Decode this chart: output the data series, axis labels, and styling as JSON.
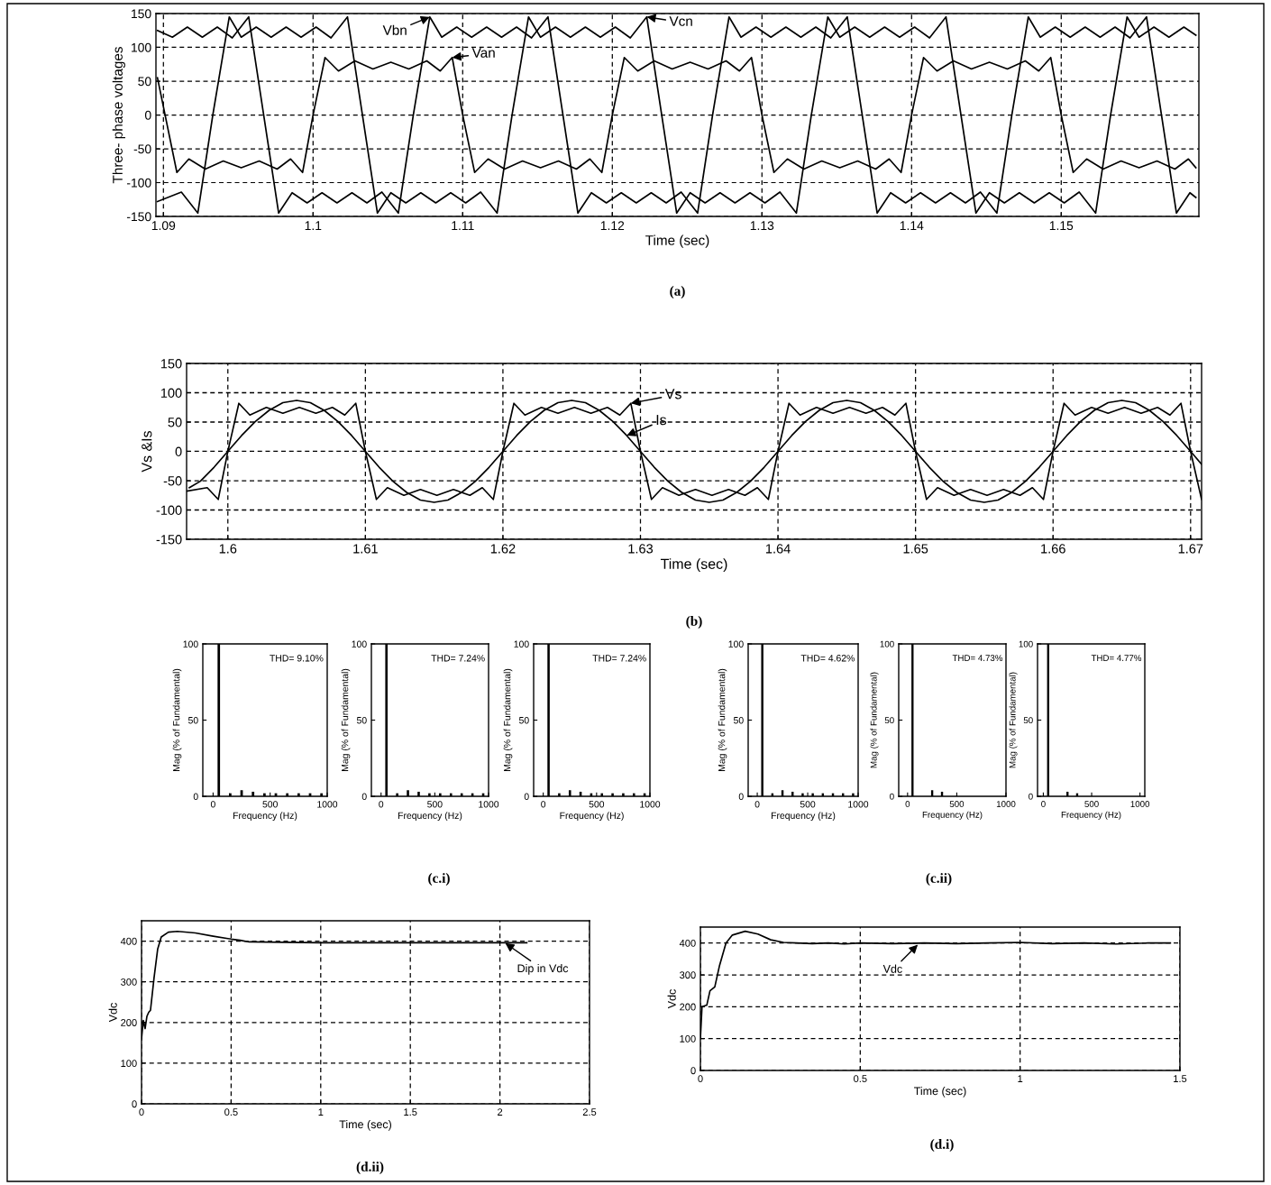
{
  "chart_data": [
    {
      "type": "line",
      "xlabel": "Time (sec)",
      "ylabel": "Three- phase voltages",
      "xlim": [
        1.0895,
        1.1592
      ],
      "xticks": [
        1.09,
        1.1,
        1.11,
        1.12,
        1.13,
        1.14,
        1.15
      ],
      "ylim": [
        -150,
        150
      ],
      "yticks": [
        -150,
        -100,
        -50,
        0,
        50,
        100,
        150
      ],
      "grid": true,
      "legend": false,
      "series": [
        {
          "color": "#000000",
          "x": [
            1.0896,
            1.0912,
            1.0923,
            1.0933,
            1.0944,
            1.0952,
            1.0962,
            1.0972,
            1.0982,
            1.0992,
            1.1002,
            1.1012,
            1.1023,
            1.1033,
            1.1043,
            1.1052,
            1.1062,
            1.1072,
            1.1082,
            1.1092,
            1.1102,
            1.1112,
            1.1123,
            1.1133,
            1.1144,
            1.1152,
            1.1162,
            1.1172,
            1.1182,
            1.1192,
            1.1202,
            1.1212,
            1.1223,
            1.1233,
            1.1243,
            1.1252,
            1.1262,
            1.1272,
            1.1282,
            1.1292,
            1.1302,
            1.1312,
            1.1323,
            1.1333,
            1.1344,
            1.1352,
            1.1362,
            1.1372,
            1.1382,
            1.1392,
            1.1402,
            1.1412,
            1.1423,
            1.1433,
            1.1443,
            1.1452,
            1.1462,
            1.1472,
            1.1482,
            1.1492,
            1.1502,
            1.1512,
            1.1523,
            1.1533,
            1.1544,
            1.1552,
            1.1562,
            1.1572,
            1.1582,
            1.159
          ],
          "values": [
            -128,
            -114,
            -145,
            0,
            145,
            115,
            130,
            115,
            130,
            115,
            130,
            114,
            145,
            0,
            -145,
            -115,
            -130,
            -115,
            -130,
            -115,
            -130,
            -114,
            -145,
            0,
            145,
            115,
            130,
            115,
            130,
            115,
            130,
            114,
            145,
            0,
            -145,
            -115,
            -130,
            -115,
            -130,
            -115,
            -130,
            -114,
            -145,
            0,
            145,
            115,
            130,
            115,
            130,
            115,
            130,
            114,
            145,
            0,
            -145,
            -115,
            -130,
            -115,
            -130,
            -115,
            -130,
            -114,
            -145,
            0,
            145,
            115,
            130,
            115,
            130,
            118
          ]
        },
        {
          "color": "#000000",
          "x": [
            1.0896,
            1.0906,
            1.0916,
            1.0926,
            1.0936,
            1.0946,
            1.0957,
            1.0967,
            1.0977,
            1.0986,
            1.0996,
            1.1006,
            1.1016,
            1.1026,
            1.1036,
            1.1046,
            1.1057,
            1.1067,
            1.1078,
            1.1086,
            1.1096,
            1.1106,
            1.1116,
            1.1126,
            1.1136,
            1.1146,
            1.1157,
            1.1167,
            1.1177,
            1.1186,
            1.1196,
            1.1206,
            1.1216,
            1.1226,
            1.1236,
            1.1246,
            1.1257,
            1.1267,
            1.1278,
            1.1286,
            1.1296,
            1.1306,
            1.1316,
            1.1326,
            1.1336,
            1.1346,
            1.1357,
            1.1367,
            1.1377,
            1.1386,
            1.1396,
            1.1406,
            1.1416,
            1.1426,
            1.1436,
            1.1446,
            1.1457,
            1.1467,
            1.1478,
            1.1486,
            1.1496,
            1.1506,
            1.1516,
            1.1526,
            1.1536,
            1.1546,
            1.1557,
            1.1567,
            1.1577,
            1.1586,
            1.159
          ],
          "values": [
            125,
            115,
            130,
            115,
            130,
            114,
            145,
            0,
            -145,
            -115,
            -130,
            -115,
            -130,
            -115,
            -130,
            -114,
            -145,
            0,
            145,
            115,
            130,
            115,
            130,
            115,
            130,
            114,
            145,
            0,
            -145,
            -115,
            -130,
            -115,
            -130,
            -115,
            -130,
            -114,
            -145,
            0,
            145,
            115,
            130,
            115,
            130,
            115,
            130,
            114,
            145,
            0,
            -145,
            -115,
            -130,
            -115,
            -130,
            -115,
            -130,
            -114,
            -145,
            0,
            145,
            115,
            130,
            115,
            130,
            115,
            130,
            114,
            145,
            0,
            -145,
            -115,
            -122
          ]
        },
        {
          "color": "#000000",
          "x": [
            1.0896,
            1.0909,
            1.0917,
            1.0928,
            1.094,
            1.0952,
            1.0964,
            1.0976,
            1.0985,
            1.0993,
            1.1,
            1.1008,
            1.1017,
            1.1028,
            1.104,
            1.1052,
            1.1064,
            1.1076,
            1.1085,
            1.1093,
            1.11,
            1.1108,
            1.1117,
            1.1128,
            1.114,
            1.1152,
            1.1164,
            1.1176,
            1.1185,
            1.1193,
            1.12,
            1.1208,
            1.1217,
            1.1228,
            1.124,
            1.1252,
            1.1264,
            1.1276,
            1.1285,
            1.1293,
            1.13,
            1.1308,
            1.1317,
            1.1328,
            1.134,
            1.1352,
            1.1364,
            1.1376,
            1.1385,
            1.1393,
            1.14,
            1.1408,
            1.1417,
            1.1428,
            1.144,
            1.1452,
            1.1464,
            1.1476,
            1.1485,
            1.1493,
            1.15,
            1.1508,
            1.1517,
            1.1528,
            1.154,
            1.1552,
            1.1564,
            1.1576,
            1.1585,
            1.159
          ],
          "values": [
            55,
            -85,
            -65,
            -80,
            -68,
            -78,
            -68,
            -80,
            -65,
            -85,
            0,
            85,
            65,
            80,
            68,
            78,
            68,
            80,
            65,
            85,
            0,
            -85,
            -65,
            -80,
            -68,
            -78,
            -68,
            -80,
            -65,
            -85,
            0,
            85,
            65,
            80,
            68,
            78,
            68,
            80,
            65,
            85,
            0,
            -85,
            -65,
            -80,
            -68,
            -78,
            -68,
            -80,
            -65,
            -85,
            0,
            85,
            65,
            80,
            68,
            78,
            68,
            80,
            65,
            85,
            0,
            -85,
            -65,
            -80,
            -68,
            -78,
            -68,
            -80,
            -65,
            -78
          ]
        }
      ],
      "annotations": [
        {
          "text": "Vbn",
          "x": 1.1078,
          "y": 145
        },
        {
          "text": "Van",
          "x": 1.1093,
          "y": 85
        },
        {
          "text": "Vcn",
          "x": 1.1223,
          "y": 145
        },
        "(a)"
      ]
    },
    {
      "type": "line",
      "xlabel": "Time (sec)",
      "ylabel": "Vs &Is",
      "xlim": [
        1.597,
        1.6708
      ],
      "xticks": [
        1.6,
        1.61,
        1.62,
        1.63,
        1.64,
        1.65,
        1.66,
        1.67
      ],
      "ylim": [
        -150,
        150
      ],
      "yticks": [
        -150,
        -100,
        -50,
        0,
        50,
        100,
        150
      ],
      "grid": true,
      "legend": false,
      "series": [
        {
          "color": "#000000",
          "x": [
            1.597,
            1.5985,
            1.5993,
            1.6,
            1.6008,
            1.6016,
            1.6028,
            1.604,
            1.6052,
            1.6064,
            1.6076,
            1.6085,
            1.6093,
            1.61,
            1.6108,
            1.6116,
            1.6128,
            1.614,
            1.6152,
            1.6164,
            1.6176,
            1.6185,
            1.6193,
            1.62,
            1.6208,
            1.6216,
            1.6228,
            1.624,
            1.6252,
            1.6264,
            1.6276,
            1.6285,
            1.6293,
            1.63,
            1.6308,
            1.6316,
            1.6328,
            1.634,
            1.6352,
            1.6364,
            1.6376,
            1.6385,
            1.6393,
            1.64,
            1.6408,
            1.6416,
            1.6428,
            1.644,
            1.6452,
            1.6464,
            1.6476,
            1.6485,
            1.6493,
            1.65,
            1.6508,
            1.6516,
            1.6528,
            1.654,
            1.6552,
            1.6564,
            1.6576,
            1.6585,
            1.6593,
            1.66,
            1.6608,
            1.6616,
            1.6628,
            1.664,
            1.6652,
            1.6664,
            1.6676,
            1.6685,
            1.6693,
            1.67,
            1.6708
          ],
          "values": [
            -68,
            -62,
            -82,
            0,
            82,
            62,
            75,
            65,
            75,
            65,
            75,
            62,
            82,
            0,
            -82,
            -62,
            -75,
            -65,
            -75,
            -65,
            -75,
            -62,
            -82,
            0,
            82,
            62,
            75,
            65,
            75,
            65,
            75,
            62,
            82,
            0,
            -82,
            -62,
            -75,
            -65,
            -75,
            -65,
            -75,
            -62,
            -82,
            0,
            82,
            62,
            75,
            65,
            75,
            65,
            75,
            62,
            82,
            0,
            -82,
            -62,
            -75,
            -65,
            -75,
            -65,
            -75,
            -62,
            -82,
            0,
            82,
            62,
            75,
            65,
            75,
            65,
            75,
            62,
            82,
            0,
            -82
          ]
        },
        {
          "color": "#000000",
          "x": [
            1.5972,
            1.598,
            1.599,
            1.6,
            1.601,
            1.602,
            1.603,
            1.604,
            1.605,
            1.606,
            1.607,
            1.608,
            1.609,
            1.61,
            1.611,
            1.612,
            1.613,
            1.614,
            1.615,
            1.616,
            1.617,
            1.618,
            1.619,
            1.62,
            1.621,
            1.622,
            1.623,
            1.624,
            1.625,
            1.626,
            1.627,
            1.628,
            1.629,
            1.63,
            1.631,
            1.632,
            1.633,
            1.634,
            1.635,
            1.636,
            1.637,
            1.638,
            1.639,
            1.64,
            1.641,
            1.642,
            1.643,
            1.644,
            1.645,
            1.646,
            1.647,
            1.648,
            1.649,
            1.65,
            1.651,
            1.652,
            1.653,
            1.654,
            1.655,
            1.656,
            1.657,
            1.658,
            1.659,
            1.66,
            1.661,
            1.662,
            1.663,
            1.664,
            1.665,
            1.666,
            1.667,
            1.668,
            1.669,
            1.67,
            1.6708
          ],
          "values": [
            -62,
            -51,
            -27,
            0,
            27,
            51,
            70,
            83,
            87,
            83,
            70,
            51,
            27,
            0,
            -27,
            -51,
            -70,
            -83,
            -87,
            -83,
            -70,
            -51,
            -27,
            0,
            27,
            51,
            70,
            83,
            87,
            83,
            70,
            51,
            27,
            0,
            -27,
            -51,
            -70,
            -83,
            -87,
            -83,
            -70,
            -51,
            -27,
            0,
            27,
            51,
            70,
            83,
            87,
            83,
            70,
            51,
            27,
            0,
            -27,
            -51,
            -70,
            -83,
            -87,
            -83,
            -70,
            -51,
            -27,
            0,
            27,
            51,
            70,
            83,
            87,
            83,
            70,
            51,
            27,
            0,
            -22
          ]
        }
      ],
      "annotations": [
        {
          "text": "Vs",
          "x": 1.6293,
          "y": 82
        },
        {
          "text": "Is",
          "x": 1.629,
          "y": 27
        },
        "(b)"
      ]
    },
    {
      "type": "bar",
      "x": [
        50,
        150,
        250,
        350,
        450,
        550,
        650,
        750,
        850,
        950
      ],
      "values": [
        100,
        2,
        4,
        3,
        2,
        2,
        2,
        2,
        2,
        2
      ],
      "color": "#000000",
      "xlim": [
        -90,
        1000
      ],
      "xticks": [
        0,
        500,
        1000
      ],
      "ylim": [
        0,
        100
      ],
      "yticks": [
        0,
        50,
        100
      ],
      "xlabel": "Frequency (Hz)",
      "ylabel": "Mag (% of Fundamental)",
      "annotations": [
        "THD= 9.10%"
      ]
    },
    {
      "type": "bar",
      "x": [
        50,
        150,
        250,
        350,
        450,
        550,
        650,
        750,
        850,
        950
      ],
      "values": [
        100,
        2,
        4,
        3,
        2,
        2,
        2,
        2,
        2,
        2
      ],
      "color": "#000000",
      "xlim": [
        -90,
        1000
      ],
      "xticks": [
        0,
        500,
        1000
      ],
      "ylim": [
        0,
        100
      ],
      "yticks": [
        0,
        50,
        100
      ],
      "xlabel": "Frequency (Hz)",
      "ylabel": "Mag (% of Fundamental)",
      "annotations": [
        "THD= 7.24%",
        "(c.i)"
      ]
    },
    {
      "type": "bar",
      "x": [
        50,
        150,
        250,
        350,
        450,
        550,
        650,
        750,
        850,
        950
      ],
      "values": [
        100,
        2,
        4,
        3,
        2,
        2,
        2,
        2,
        2,
        2
      ],
      "color": "#000000",
      "xlim": [
        -90,
        1000
      ],
      "xticks": [
        0,
        500,
        1000
      ],
      "ylim": [
        0,
        100
      ],
      "yticks": [
        0,
        50,
        100
      ],
      "xlabel": "Frequency (Hz)",
      "ylabel": "Mag (% of Fundamental)",
      "annotations": [
        "THD= 7.24%"
      ]
    },
    {
      "type": "bar",
      "x": [
        50,
        150,
        250,
        350,
        450,
        550,
        650,
        750,
        850,
        950
      ],
      "values": [
        100,
        2,
        4,
        3,
        2,
        2,
        2,
        2,
        2,
        2
      ],
      "color": "#000000",
      "xlim": [
        -90,
        1000
      ],
      "xticks": [
        0,
        500,
        1000
      ],
      "ylim": [
        0,
        100
      ],
      "yticks": [
        0,
        50,
        100
      ],
      "xlabel": "Frequency (Hz)",
      "ylabel": "Mag (% of Fundamental)",
      "annotations": [
        "THD= 4.62%"
      ]
    },
    {
      "type": "bar",
      "x": [
        50,
        250,
        350
      ],
      "values": [
        100,
        4,
        3
      ],
      "color": "#000000",
      "xlim": [
        -90,
        1000
      ],
      "xticks": [
        0,
        500,
        1000
      ],
      "ylim": [
        0,
        100
      ],
      "yticks": [
        0,
        50,
        100
      ],
      "xlabel": "Frequency (Hz)",
      "ylabel": "Mag (% of Fundamental)",
      "annotations": [
        "THD= 4.73%",
        "(c.ii)"
      ]
    },
    {
      "type": "bar",
      "x": [
        50,
        250,
        350
      ],
      "values": [
        100,
        3,
        2
      ],
      "color": "#000000",
      "xlim": [
        -60,
        1050
      ],
      "xticks": [
        0,
        500,
        1000
      ],
      "ylim": [
        0,
        100
      ],
      "yticks": [
        0,
        50,
        100
      ],
      "xlabel": "Frequency (Hz)",
      "ylabel": "Mag (% of Fundamental)",
      "annotations": [
        "THD= 4.77%"
      ]
    },
    {
      "type": "line",
      "x": [
        0,
        0.01,
        0.02,
        0.03,
        0.04,
        0.05,
        0.07,
        0.09,
        0.11,
        0.15,
        0.2,
        0.3,
        0.4,
        0.5,
        0.55,
        0.6,
        0.8,
        1.0,
        1.5,
        2.0,
        2.15
      ],
      "values": [
        160,
        205,
        185,
        215,
        225,
        230,
        310,
        380,
        410,
        422,
        424,
        420,
        412,
        405,
        402,
        398,
        397,
        396,
        396,
        396,
        396
      ],
      "color": "#000000",
      "xlabel": "Time (sec)",
      "ylabel": "Vdc",
      "xlim": [
        0,
        2.5
      ],
      "xticks": [
        0,
        0.5,
        1,
        1.5,
        2,
        2.5
      ],
      "ylim": [
        0,
        450
      ],
      "yticks": [
        0,
        100,
        200,
        300,
        400
      ],
      "grid": true,
      "annotations": [
        {
          "text": "Dip in Vdc",
          "x": 2.03,
          "y": 395
        },
        "(d.ii)"
      ]
    },
    {
      "type": "line",
      "x": [
        0,
        0.005,
        0.02,
        0.03,
        0.045,
        0.06,
        0.08,
        0.1,
        0.14,
        0.18,
        0.22,
        0.26,
        0.3,
        0.35,
        0.4,
        0.45,
        0.5,
        0.6,
        0.7,
        0.8,
        0.9,
        1.0,
        1.1,
        1.2,
        1.3,
        1.4,
        1.47
      ],
      "values": [
        100,
        200,
        205,
        250,
        262,
        330,
        400,
        425,
        437,
        428,
        410,
        402,
        400,
        398,
        400,
        397,
        400,
        398,
        400,
        398,
        400,
        402,
        398,
        400,
        397,
        400,
        400
      ],
      "color": "#000000",
      "xlabel": "Time (sec)",
      "ylabel": "Vdc",
      "xlim": [
        0,
        1.5
      ],
      "xticks": [
        0,
        0.5,
        1,
        1.5
      ],
      "ylim": [
        0,
        450
      ],
      "yticks": [
        0,
        100,
        200,
        300,
        400
      ],
      "grid": true,
      "annotations": [
        {
          "text": "Vdc",
          "x": 0.68,
          "y": 395
        },
        "(d.i)"
      ]
    }
  ]
}
